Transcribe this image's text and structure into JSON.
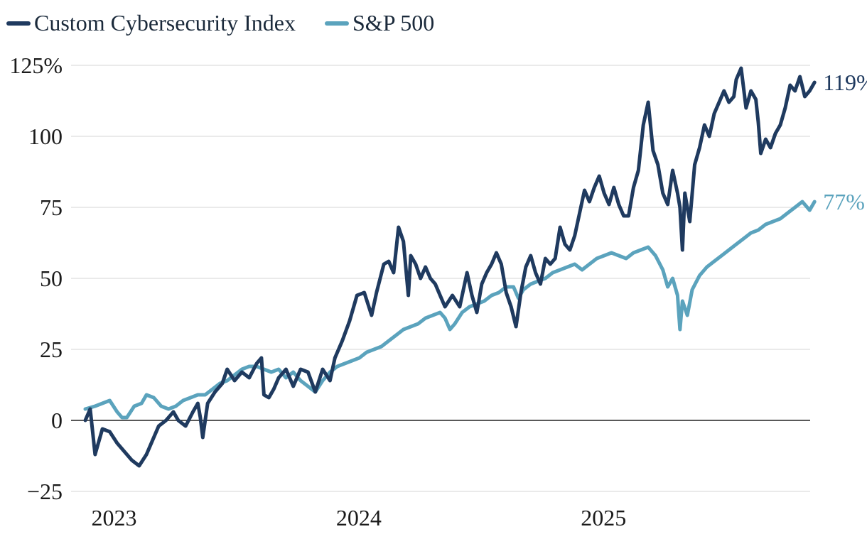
{
  "chart_data": {
    "type": "line",
    "title": "",
    "xlabel": "",
    "ylabel": "",
    "ylim": [
      -25,
      125
    ],
    "xlim": [
      2022.83,
      2025.85
    ],
    "y_ticks": [
      {
        "value": 125,
        "label": "125%"
      },
      {
        "value": 100,
        "label": "100"
      },
      {
        "value": 75,
        "label": "75"
      },
      {
        "value": 50,
        "label": "50"
      },
      {
        "value": 25,
        "label": "25"
      },
      {
        "value": 0,
        "label": "0"
      },
      {
        "value": -25,
        "label": "−25"
      }
    ],
    "x_ticks": [
      {
        "value": 2023.0,
        "label": "2023"
      },
      {
        "value": 2024.0,
        "label": "2024"
      },
      {
        "value": 2025.0,
        "label": "2025"
      }
    ],
    "legend_position": "top-left",
    "series": [
      {
        "name": "Custom Cybersecurity Index",
        "color": "#1f3a5f",
        "end_label": "119%",
        "points": [
          [
            2022.83,
            0
          ],
          [
            2022.85,
            4
          ],
          [
            2022.87,
            -12
          ],
          [
            2022.9,
            -3
          ],
          [
            2022.93,
            -4
          ],
          [
            2022.96,
            -8
          ],
          [
            2022.99,
            -11
          ],
          [
            2023.02,
            -14
          ],
          [
            2023.05,
            -16
          ],
          [
            2023.08,
            -12
          ],
          [
            2023.11,
            -6
          ],
          [
            2023.13,
            -2
          ],
          [
            2023.16,
            0
          ],
          [
            2023.19,
            3
          ],
          [
            2023.21,
            0
          ],
          [
            2023.24,
            -2
          ],
          [
            2023.27,
            3
          ],
          [
            2023.29,
            6
          ],
          [
            2023.3,
            1
          ],
          [
            2023.31,
            -6
          ],
          [
            2023.33,
            6
          ],
          [
            2023.36,
            10
          ],
          [
            2023.39,
            13
          ],
          [
            2023.41,
            18
          ],
          [
            2023.44,
            14
          ],
          [
            2023.47,
            17
          ],
          [
            2023.5,
            15
          ],
          [
            2023.53,
            20
          ],
          [
            2023.55,
            22
          ],
          [
            2023.56,
            9
          ],
          [
            2023.58,
            8
          ],
          [
            2023.6,
            11
          ],
          [
            2023.62,
            15
          ],
          [
            2023.65,
            18
          ],
          [
            2023.68,
            12
          ],
          [
            2023.71,
            18
          ],
          [
            2023.74,
            17
          ],
          [
            2023.77,
            10
          ],
          [
            2023.8,
            18
          ],
          [
            2023.83,
            14
          ],
          [
            2023.85,
            22
          ],
          [
            2023.88,
            28
          ],
          [
            2023.91,
            35
          ],
          [
            2023.94,
            44
          ],
          [
            2023.97,
            45
          ],
          [
            2024.0,
            37
          ],
          [
            2024.02,
            45
          ],
          [
            2024.05,
            55
          ],
          [
            2024.07,
            56
          ],
          [
            2024.09,
            52
          ],
          [
            2024.11,
            68
          ],
          [
            2024.13,
            63
          ],
          [
            2024.15,
            44
          ],
          [
            2024.16,
            58
          ],
          [
            2024.18,
            55
          ],
          [
            2024.2,
            50
          ],
          [
            2024.22,
            54
          ],
          [
            2024.24,
            50
          ],
          [
            2024.26,
            48
          ],
          [
            2024.28,
            44
          ],
          [
            2024.3,
            40
          ],
          [
            2024.33,
            44
          ],
          [
            2024.36,
            40
          ],
          [
            2024.39,
            52
          ],
          [
            2024.41,
            44
          ],
          [
            2024.43,
            38
          ],
          [
            2024.45,
            48
          ],
          [
            2024.47,
            52
          ],
          [
            2024.49,
            55
          ],
          [
            2024.51,
            59
          ],
          [
            2024.53,
            55
          ],
          [
            2024.55,
            45
          ],
          [
            2024.57,
            40
          ],
          [
            2024.59,
            33
          ],
          [
            2024.61,
            45
          ],
          [
            2024.63,
            54
          ],
          [
            2024.65,
            58
          ],
          [
            2024.67,
            52
          ],
          [
            2024.69,
            48
          ],
          [
            2024.71,
            57
          ],
          [
            2024.73,
            55
          ],
          [
            2024.75,
            57
          ],
          [
            2024.77,
            68
          ],
          [
            2024.79,
            62
          ],
          [
            2024.81,
            60
          ],
          [
            2024.83,
            65
          ],
          [
            2024.85,
            73
          ],
          [
            2024.87,
            81
          ],
          [
            2024.89,
            77
          ],
          [
            2024.91,
            82
          ],
          [
            2024.93,
            86
          ],
          [
            2024.95,
            80
          ],
          [
            2024.97,
            76
          ],
          [
            2024.99,
            82
          ],
          [
            2025.01,
            76
          ],
          [
            2025.03,
            72
          ],
          [
            2025.05,
            72
          ],
          [
            2025.07,
            82
          ],
          [
            2025.09,
            88
          ],
          [
            2025.11,
            104
          ],
          [
            2025.13,
            112
          ],
          [
            2025.15,
            95
          ],
          [
            2025.17,
            90
          ],
          [
            2025.19,
            80
          ],
          [
            2025.21,
            76
          ],
          [
            2025.23,
            88
          ],
          [
            2025.25,
            80
          ],
          [
            2025.26,
            75
          ],
          [
            2025.27,
            60
          ],
          [
            2025.28,
            80
          ],
          [
            2025.3,
            70
          ],
          [
            2025.32,
            90
          ],
          [
            2025.34,
            96
          ],
          [
            2025.36,
            104
          ],
          [
            2025.38,
            100
          ],
          [
            2025.4,
            108
          ],
          [
            2025.42,
            112
          ],
          [
            2025.44,
            116
          ],
          [
            2025.46,
            112
          ],
          [
            2025.48,
            114
          ],
          [
            2025.49,
            120
          ],
          [
            2025.51,
            124
          ],
          [
            2025.53,
            110
          ],
          [
            2025.55,
            116
          ],
          [
            2025.57,
            113
          ],
          [
            2025.58,
            105
          ],
          [
            2025.59,
            94
          ],
          [
            2025.61,
            99
          ],
          [
            2025.63,
            96
          ],
          [
            2025.65,
            101
          ],
          [
            2025.67,
            104
          ],
          [
            2025.69,
            110
          ],
          [
            2025.71,
            118
          ],
          [
            2025.73,
            116
          ],
          [
            2025.75,
            121
          ],
          [
            2025.77,
            114
          ],
          [
            2025.79,
            116
          ],
          [
            2025.81,
            119
          ]
        ]
      },
      {
        "name": "S&P 500",
        "color": "#5ba3bd",
        "end_label": "77%",
        "points": [
          [
            2022.83,
            4
          ],
          [
            2022.87,
            5
          ],
          [
            2022.9,
            6
          ],
          [
            2022.93,
            7
          ],
          [
            2022.96,
            3
          ],
          [
            2022.98,
            1
          ],
          [
            2023.0,
            1
          ],
          [
            2023.03,
            5
          ],
          [
            2023.06,
            6
          ],
          [
            2023.08,
            9
          ],
          [
            2023.11,
            8
          ],
          [
            2023.14,
            5
          ],
          [
            2023.17,
            4
          ],
          [
            2023.2,
            5
          ],
          [
            2023.23,
            7
          ],
          [
            2023.26,
            8
          ],
          [
            2023.29,
            9
          ],
          [
            2023.32,
            9
          ],
          [
            2023.35,
            11
          ],
          [
            2023.38,
            13
          ],
          [
            2023.41,
            14
          ],
          [
            2023.44,
            16
          ],
          [
            2023.47,
            18
          ],
          [
            2023.5,
            19
          ],
          [
            2023.53,
            19
          ],
          [
            2023.56,
            18
          ],
          [
            2023.59,
            17
          ],
          [
            2023.62,
            18
          ],
          [
            2023.65,
            15
          ],
          [
            2023.68,
            17
          ],
          [
            2023.71,
            14
          ],
          [
            2023.74,
            12
          ],
          [
            2023.77,
            10
          ],
          [
            2023.8,
            14
          ],
          [
            2023.83,
            17
          ],
          [
            2023.86,
            19
          ],
          [
            2023.89,
            20
          ],
          [
            2023.92,
            21
          ],
          [
            2023.95,
            22
          ],
          [
            2023.98,
            24
          ],
          [
            2024.01,
            25
          ],
          [
            2024.04,
            26
          ],
          [
            2024.07,
            28
          ],
          [
            2024.1,
            30
          ],
          [
            2024.13,
            32
          ],
          [
            2024.16,
            33
          ],
          [
            2024.19,
            34
          ],
          [
            2024.22,
            36
          ],
          [
            2024.25,
            37
          ],
          [
            2024.28,
            38
          ],
          [
            2024.3,
            36
          ],
          [
            2024.32,
            32
          ],
          [
            2024.34,
            34
          ],
          [
            2024.37,
            38
          ],
          [
            2024.4,
            40
          ],
          [
            2024.43,
            41
          ],
          [
            2024.46,
            42
          ],
          [
            2024.49,
            44
          ],
          [
            2024.52,
            45
          ],
          [
            2024.55,
            47
          ],
          [
            2024.58,
            47
          ],
          [
            2024.6,
            43
          ],
          [
            2024.62,
            46
          ],
          [
            2024.65,
            48
          ],
          [
            2024.68,
            49
          ],
          [
            2024.71,
            50
          ],
          [
            2024.74,
            52
          ],
          [
            2024.77,
            53
          ],
          [
            2024.8,
            54
          ],
          [
            2024.83,
            55
          ],
          [
            2024.86,
            53
          ],
          [
            2024.89,
            55
          ],
          [
            2024.92,
            57
          ],
          [
            2024.95,
            58
          ],
          [
            2024.98,
            59
          ],
          [
            2025.01,
            58
          ],
          [
            2025.04,
            57
          ],
          [
            2025.07,
            59
          ],
          [
            2025.1,
            60
          ],
          [
            2025.13,
            61
          ],
          [
            2025.16,
            58
          ],
          [
            2025.19,
            53
          ],
          [
            2025.21,
            47
          ],
          [
            2025.23,
            50
          ],
          [
            2025.25,
            44
          ],
          [
            2025.26,
            32
          ],
          [
            2025.27,
            42
          ],
          [
            2025.29,
            37
          ],
          [
            2025.31,
            46
          ],
          [
            2025.34,
            51
          ],
          [
            2025.37,
            54
          ],
          [
            2025.4,
            56
          ],
          [
            2025.43,
            58
          ],
          [
            2025.46,
            60
          ],
          [
            2025.49,
            62
          ],
          [
            2025.52,
            64
          ],
          [
            2025.55,
            66
          ],
          [
            2025.58,
            67
          ],
          [
            2025.61,
            69
          ],
          [
            2025.64,
            70
          ],
          [
            2025.67,
            71
          ],
          [
            2025.7,
            73
          ],
          [
            2025.73,
            75
          ],
          [
            2025.76,
            77
          ],
          [
            2025.78,
            75
          ],
          [
            2025.79,
            74
          ],
          [
            2025.81,
            77
          ]
        ]
      }
    ]
  }
}
